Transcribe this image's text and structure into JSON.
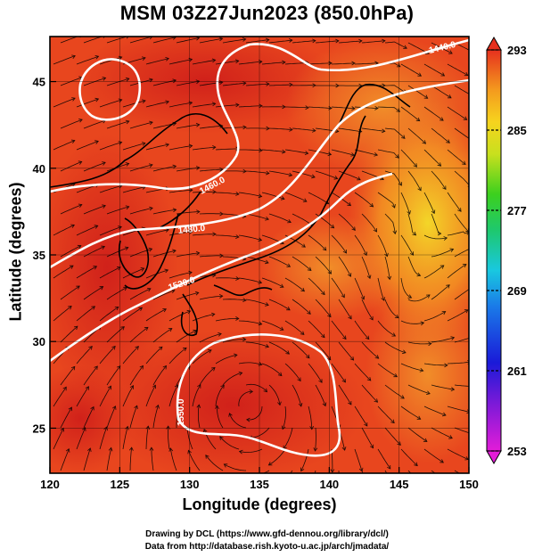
{
  "title": "MSM 03Z27Jun2023 (850.0hPa)",
  "axes": {
    "xlabel": "Longitude (degrees)",
    "ylabel": "Latitude  (degrees)",
    "xlim": [
      120,
      150
    ],
    "ylim": [
      22.4,
      47.6
    ],
    "xticks": [
      120,
      125,
      130,
      135,
      140,
      145,
      150
    ],
    "yticks": [
      25,
      30,
      35,
      40,
      45
    ]
  },
  "colorbar": {
    "min": 253,
    "max": 293,
    "ticks": [
      253,
      261,
      269,
      277,
      285,
      293
    ]
  },
  "contours": [
    {
      "label": "1440.0"
    },
    {
      "label": "1460.0"
    },
    {
      "label": "1480.0"
    },
    {
      "label": "1520.0"
    },
    {
      "label": "1550.0"
    }
  ],
  "credits": {
    "line1": "Drawing by DCL (https://www.gfd-dennou.org/library/dcl/)",
    "line2": "Data from http://database.rish.kyoto-u.ac.jp/arch/jmadata/"
  },
  "colors": {
    "background_field": "#e8401c",
    "warm_core": "#d8241c",
    "cool_region": "#f6c21e",
    "contour_line": "#ffffff",
    "streamline": "#000000"
  }
}
